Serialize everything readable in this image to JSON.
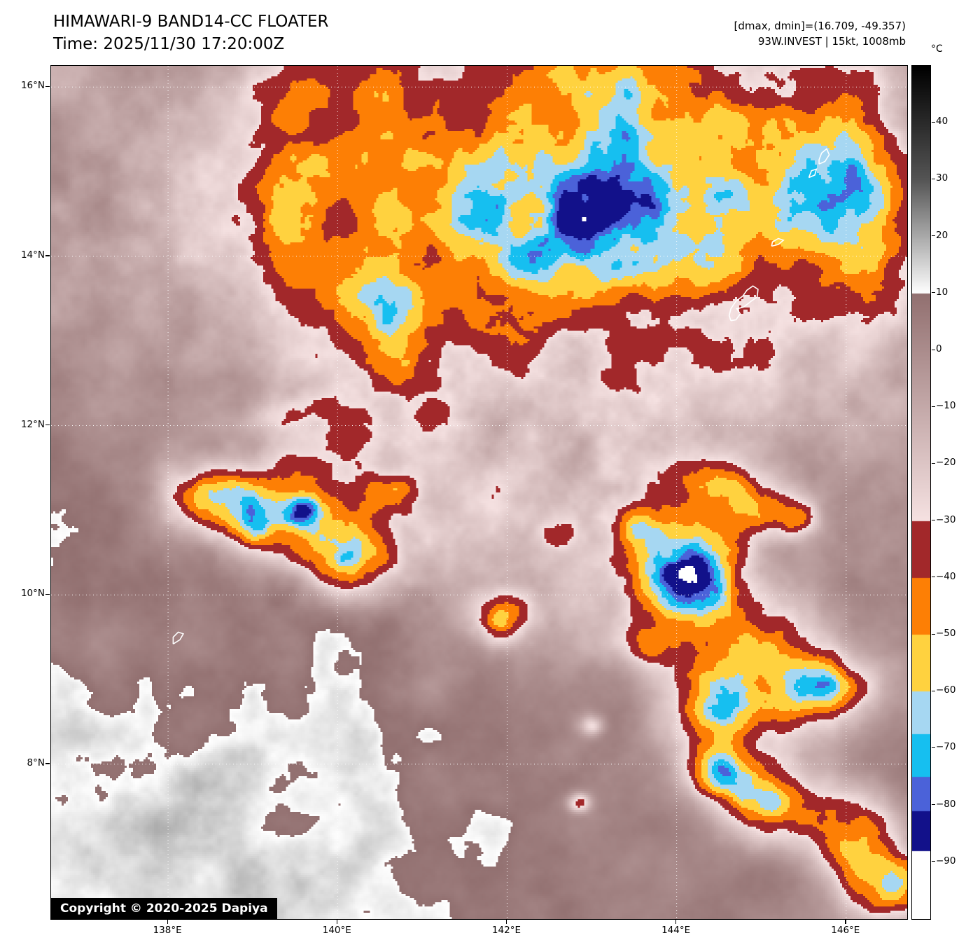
{
  "header": {
    "title": "HIMAWARI-9 BAND14-CC FLOATER",
    "time_label": "Time: 2025/11/30 17:20:00Z",
    "dmax_dmin_label": "[dmax, dmin]=(16.709, -49.357)",
    "storm_label": "93W.INVEST | 15kt, 1008mb"
  },
  "map": {
    "extent": {
      "lon_min": 136.62,
      "lon_max": 146.72,
      "lat_min": 6.17,
      "lat_max": 16.25
    },
    "x_ticks": [
      {
        "lon": 138,
        "label": "138°E"
      },
      {
        "lon": 140,
        "label": "140°E"
      },
      {
        "lon": 142,
        "label": "142°E"
      },
      {
        "lon": 144,
        "label": "144°E"
      },
      {
        "lon": 146,
        "label": "146°E"
      }
    ],
    "y_ticks": [
      {
        "lat": 16,
        "label": "16°N"
      },
      {
        "lat": 14,
        "label": "14°N"
      },
      {
        "lat": 12,
        "label": "12°N"
      },
      {
        "lat": 10,
        "label": "10°N"
      },
      {
        "lat": 8,
        "label": "8°N"
      }
    ],
    "copyright": "Copyright © 2020-2025 Dapiya",
    "islands": [
      {
        "name": "guam",
        "pts": [
          [
            144.64,
            13.24
          ],
          [
            144.7,
            13.25
          ],
          [
            144.75,
            13.32
          ],
          [
            144.71,
            13.38
          ],
          [
            144.79,
            13.4
          ],
          [
            144.88,
            13.47
          ],
          [
            144.95,
            13.52
          ],
          [
            144.96,
            13.61
          ],
          [
            144.9,
            13.65
          ],
          [
            144.83,
            13.6
          ],
          [
            144.78,
            13.53
          ],
          [
            144.7,
            13.47
          ],
          [
            144.64,
            13.38
          ],
          [
            144.62,
            13.3
          ],
          [
            144.64,
            13.24
          ]
        ]
      },
      {
        "name": "rota",
        "pts": [
          [
            145.12,
            14.12
          ],
          [
            145.2,
            14.14
          ],
          [
            145.26,
            14.19
          ],
          [
            145.2,
            14.21
          ],
          [
            145.13,
            14.17
          ],
          [
            145.12,
            14.12
          ]
        ]
      },
      {
        "name": "tinian",
        "pts": [
          [
            145.56,
            14.93
          ],
          [
            145.63,
            14.96
          ],
          [
            145.65,
            15.03
          ],
          [
            145.59,
            15.01
          ],
          [
            145.56,
            14.93
          ]
        ]
      },
      {
        "name": "saipan",
        "pts": [
          [
            145.68,
            15.09
          ],
          [
            145.75,
            15.12
          ],
          [
            145.8,
            15.2
          ],
          [
            145.77,
            15.27
          ],
          [
            145.71,
            15.22
          ],
          [
            145.68,
            15.14
          ],
          [
            145.68,
            15.09
          ]
        ]
      },
      {
        "name": "yap",
        "pts": [
          [
            138.06,
            9.42
          ],
          [
            138.14,
            9.47
          ],
          [
            138.18,
            9.54
          ],
          [
            138.12,
            9.56
          ],
          [
            138.06,
            9.5
          ],
          [
            138.06,
            9.42
          ]
        ]
      }
    ]
  },
  "colorbar": {
    "unit": "°C",
    "range": [
      50,
      -100
    ],
    "ticks": [
      {
        "value": 40,
        "label": "40"
      },
      {
        "value": 30,
        "label": "30"
      },
      {
        "value": 20,
        "label": "20"
      },
      {
        "value": 10,
        "label": "10"
      },
      {
        "value": 0,
        "label": "0"
      },
      {
        "value": -10,
        "label": "−10"
      },
      {
        "value": -20,
        "label": "−20"
      },
      {
        "value": -30,
        "label": "−30"
      },
      {
        "value": -40,
        "label": "−40"
      },
      {
        "value": -50,
        "label": "−50"
      },
      {
        "value": -60,
        "label": "−60"
      },
      {
        "value": -70,
        "label": "−70"
      },
      {
        "value": -80,
        "label": "−80"
      },
      {
        "value": -90,
        "label": "−90"
      }
    ],
    "segments": [
      {
        "hi": 50,
        "lo": 30,
        "from": "#000000",
        "to": "#555555"
      },
      {
        "hi": 30,
        "lo": 10,
        "from": "#555555",
        "to": "#ffffff"
      },
      {
        "hi": 10,
        "lo": -30,
        "from": "#927070",
        "to": "#f6e2e2"
      },
      {
        "hi": -30,
        "lo": -40,
        "color": "#a2282a"
      },
      {
        "hi": -40,
        "lo": -50,
        "color": "#fd7f05"
      },
      {
        "hi": -50,
        "lo": -60,
        "color": "#ffd23f"
      },
      {
        "hi": -60,
        "lo": -67.5,
        "color": "#a6d7f2"
      },
      {
        "hi": -67.5,
        "lo": -75,
        "color": "#16bff0"
      },
      {
        "hi": -75,
        "lo": -81,
        "color": "#4b62d9"
      },
      {
        "hi": -81,
        "lo": -88,
        "color": "#12118a"
      },
      {
        "hi": -88,
        "lo": -100,
        "color": "#ffffff"
      }
    ]
  },
  "clouds": {
    "background": {
      "base_temp": 21,
      "noise_amp": 33.5,
      "mottle_extra": 38.7,
      "pink_zone_center": [
        142.5,
        12.0
      ],
      "pink_zone_sigma": [
        3.2,
        2.2
      ],
      "nw_zone_center": [
        137.5,
        15.0
      ],
      "nw_zone_sigma": [
        2.0,
        1.6
      ],
      "nw_zone_w": 0.6,
      "ne_zone_center": [
        146.5,
        15.9
      ],
      "ne_zone_sigma": [
        1.3,
        1.0
      ],
      "ne_zone_w": 0.5,
      "warm_zone_center": [
        138.0,
        7.2
      ],
      "warm_zone_sigma": [
        2.8,
        2.0
      ],
      "warm_boost": 10
    },
    "cells": [
      [
        142.8,
        14.8,
        2.9,
        1.75,
        30
      ],
      [
        142.9,
        14.6,
        1.9,
        1.15,
        26
      ],
      [
        143.1,
        14.5,
        1.0,
        0.62,
        16
      ],
      [
        143.3,
        14.57,
        0.3,
        0.24,
        18
      ],
      [
        143.0,
        16.0,
        1.3,
        0.6,
        16
      ],
      [
        140.5,
        15.3,
        0.8,
        0.75,
        18
      ],
      [
        140.5,
        13.5,
        0.45,
        0.3,
        20
      ],
      [
        140.8,
        13.0,
        0.4,
        0.45,
        18
      ],
      [
        144.55,
        14.78,
        0.22,
        0.18,
        16
      ],
      [
        145.7,
        14.7,
        0.75,
        0.55,
        26
      ],
      [
        145.9,
        15.25,
        0.45,
        0.35,
        16
      ],
      [
        145.9,
        16.0,
        0.7,
        0.45,
        20
      ],
      [
        146.35,
        13.75,
        0.5,
        0.45,
        22
      ],
      [
        146.4,
        14.6,
        0.35,
        0.45,
        18
      ],
      [
        139.4,
        14.6,
        0.45,
        1.1,
        16
      ],
      [
        139.6,
        16.1,
        0.55,
        0.35,
        16
      ],
      [
        139.6,
        11.0,
        0.5,
        0.38,
        45
      ],
      [
        139.62,
        11.02,
        0.17,
        0.14,
        38
      ],
      [
        138.45,
        11.15,
        0.42,
        0.3,
        50
      ],
      [
        138.75,
        11.3,
        0.1,
        0.08,
        10
      ],
      [
        140.15,
        10.45,
        0.4,
        0.3,
        52
      ],
      [
        140.18,
        10.48,
        0.15,
        0.12,
        12
      ],
      [
        140.62,
        11.2,
        0.22,
        0.18,
        42
      ],
      [
        139.0,
        10.85,
        0.25,
        0.2,
        30
      ],
      [
        140.3,
        11.85,
        0.4,
        0.22,
        20
      ],
      [
        139.9,
        12.2,
        0.3,
        0.2,
        16
      ],
      [
        139.3,
        12.15,
        0.25,
        0.15,
        22
      ],
      [
        141.95,
        9.7,
        0.26,
        0.2,
        46
      ],
      [
        142.62,
        10.7,
        0.15,
        0.12,
        26
      ],
      [
        143.5,
        10.8,
        0.16,
        0.13,
        28
      ],
      [
        143.0,
        8.45,
        0.1,
        0.09,
        32
      ],
      [
        142.85,
        7.55,
        0.1,
        0.08,
        36
      ],
      [
        144.0,
        10.25,
        0.6,
        0.5,
        48
      ],
      [
        144.0,
        10.2,
        0.42,
        0.38,
        20
      ],
      [
        144.02,
        10.28,
        0.13,
        0.11,
        16
      ],
      [
        144.45,
        11.35,
        0.3,
        0.22,
        40
      ],
      [
        144.95,
        11.0,
        0.32,
        0.25,
        38
      ],
      [
        145.42,
        10.9,
        0.18,
        0.15,
        30
      ],
      [
        144.8,
        9.2,
        0.6,
        0.5,
        38
      ],
      [
        145.35,
        8.8,
        0.55,
        0.45,
        36
      ],
      [
        144.45,
        8.55,
        0.4,
        0.35,
        30
      ],
      [
        145.9,
        8.95,
        0.3,
        0.25,
        28
      ],
      [
        143.7,
        9.4,
        0.22,
        0.16,
        30
      ],
      [
        144.5,
        7.9,
        0.3,
        0.22,
        46
      ],
      [
        145.05,
        7.5,
        0.4,
        0.32,
        54
      ],
      [
        145.07,
        7.52,
        0.12,
        0.1,
        12
      ],
      [
        146.1,
        7.2,
        0.42,
        0.33,
        58
      ],
      [
        146.55,
        6.55,
        0.4,
        0.3,
        50
      ]
    ]
  }
}
